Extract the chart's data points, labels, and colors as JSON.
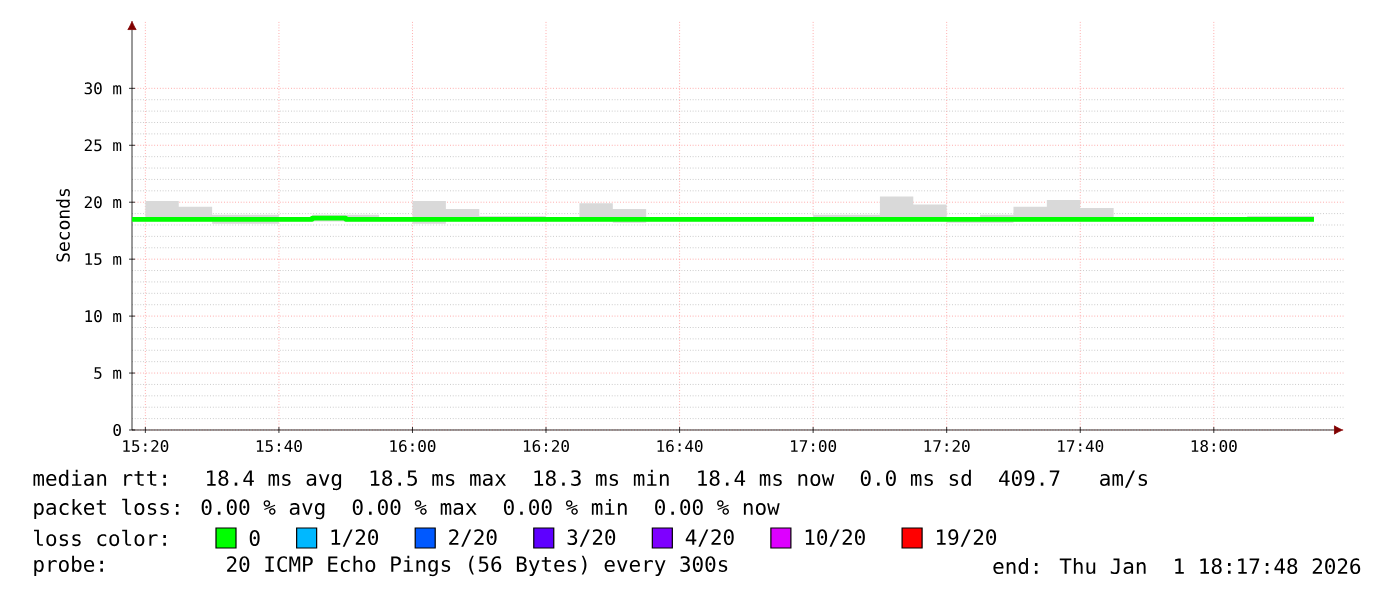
{
  "chart_data": {
    "type": "step",
    "ylabel": "Seconds",
    "x": [
      15.3,
      15.333333,
      15.416667,
      15.5,
      15.583333,
      15.666667,
      15.75,
      15.833333,
      15.916667,
      16,
      16.083333,
      16.166667,
      16.25,
      16.333333,
      16.416667,
      16.5,
      16.583333,
      16.666667,
      16.75,
      16.833333,
      16.916667,
      17,
      17.083333,
      17.166667,
      17.25,
      17.333333,
      17.416667,
      17.5,
      17.583333,
      17.666667,
      17.75,
      17.833333,
      17.916667,
      18,
      18.083333,
      18.166667,
      18.25
    ],
    "xlim": [
      15.3,
      18.325
    ],
    "xticks": [
      {
        "value": 15.333333,
        "label": "15:20"
      },
      {
        "value": 15.666667,
        "label": "15:40"
      },
      {
        "value": 16,
        "label": "16:00"
      },
      {
        "value": 16.333333,
        "label": "16:20"
      },
      {
        "value": 16.666667,
        "label": "16:40"
      },
      {
        "value": 17,
        "label": "17:00"
      },
      {
        "value": 17.333333,
        "label": "17:20"
      },
      {
        "value": 17.666667,
        "label": "17:40"
      },
      {
        "value": 18,
        "label": "18:00"
      }
    ],
    "ylim": [
      0,
      36
    ],
    "yticks": [
      0,
      {
        "value": 5,
        "label": "5 m"
      },
      {
        "value": 10,
        "label": "10 m"
      },
      {
        "value": 15,
        "label": "15 m"
      },
      {
        "value": 20,
        "label": "20 m"
      },
      {
        "value": 25,
        "label": "25 m"
      },
      {
        "value": 30,
        "label": "30 m"
      }
    ],
    "grid": true,
    "legend": "bottom",
    "legend_title": "loss color:",
    "series": [
      {
        "name": "0",
        "color": "#00ff00",
        "values": [
          18.5,
          18.5,
          18.5,
          18.5,
          18.5,
          18.5,
          18.6,
          18.5,
          18.5,
          18.5,
          18.5,
          18.5,
          18.5,
          18.5,
          18.5,
          18.5,
          18.5,
          18.5,
          18.5,
          18.5,
          18.5,
          18.5,
          18.5,
          18.5,
          18.5,
          18.5,
          18.5,
          18.5,
          18.5,
          18.5,
          18.5,
          18.5,
          18.5,
          18.5,
          18.5,
          18.5,
          18.5
        ],
        "lower": [
          18.3,
          18.3,
          18.3,
          18.1,
          18.1,
          18.3,
          18.3,
          18.3,
          18.3,
          18.1,
          18.3,
          18.3,
          18.3,
          18.3,
          18.3,
          18.2,
          18.3,
          18.3,
          18.3,
          18.3,
          18.3,
          18.3,
          18.3,
          18.3,
          18.3,
          18.2,
          18.2,
          18.3,
          18.3,
          18.3,
          18.3,
          18.3,
          18.3,
          18.3,
          18.3,
          18.3,
          18.3
        ],
        "upper": [
          18.7,
          20.1,
          19.6,
          18.9,
          18.9,
          18.7,
          18.9,
          18.9,
          18.7,
          20.1,
          19.4,
          18.8,
          18.8,
          18.7,
          19.9,
          19.4,
          18.7,
          18.7,
          18.7,
          18.6,
          18.6,
          18.9,
          18.9,
          20.5,
          19.8,
          18.7,
          18.9,
          19.6,
          20.2,
          19.5,
          18.7,
          18.6,
          18.7,
          18.6,
          18.8,
          18.8,
          18.8
        ]
      },
      {
        "name": "1/20",
        "color": "#00b8ff",
        "values": [
          null,
          null,
          null,
          null,
          null,
          null,
          null,
          null,
          null,
          null,
          null,
          null,
          null,
          null,
          null,
          null,
          null,
          null,
          null,
          null,
          null,
          null,
          null,
          null,
          null,
          null,
          null,
          null,
          null,
          null,
          null,
          null,
          null,
          null,
          null,
          null,
          null
        ]
      },
      {
        "name": "2/20",
        "color": "#0059ff",
        "values": [
          null,
          null,
          null,
          null,
          null,
          null,
          null,
          null,
          null,
          null,
          null,
          null,
          null,
          null,
          null,
          null,
          null,
          null,
          null,
          null,
          null,
          null,
          null,
          null,
          null,
          null,
          null,
          null,
          null,
          null,
          null,
          null,
          null,
          null,
          null,
          null,
          null
        ]
      },
      {
        "name": "3/20",
        "color": "#5e00ff",
        "values": [
          null,
          null,
          null,
          null,
          null,
          null,
          null,
          null,
          null,
          null,
          null,
          null,
          null,
          null,
          null,
          null,
          null,
          null,
          null,
          null,
          null,
          null,
          null,
          null,
          null,
          null,
          null,
          null,
          null,
          null,
          null,
          null,
          null,
          null,
          null,
          null,
          null
        ]
      },
      {
        "name": "4/20",
        "color": "#7e00ff",
        "values": [
          null,
          null,
          null,
          null,
          null,
          null,
          null,
          null,
          null,
          null,
          null,
          null,
          null,
          null,
          null,
          null,
          null,
          null,
          null,
          null,
          null,
          null,
          null,
          null,
          null,
          null,
          null,
          null,
          null,
          null,
          null,
          null,
          null,
          null,
          null,
          null,
          null
        ]
      },
      {
        "name": "10/20",
        "color": "#dd00ff",
        "values": [
          null,
          null,
          null,
          null,
          null,
          null,
          null,
          null,
          null,
          null,
          null,
          null,
          null,
          null,
          null,
          null,
          null,
          null,
          null,
          null,
          null,
          null,
          null,
          null,
          null,
          null,
          null,
          null,
          null,
          null,
          null,
          null,
          null,
          null,
          null,
          null,
          null
        ]
      },
      {
        "name": "19/20",
        "color": "#ff0000",
        "values": [
          null,
          null,
          null,
          null,
          null,
          null,
          null,
          null,
          null,
          null,
          null,
          null,
          null,
          null,
          null,
          null,
          null,
          null,
          null,
          null,
          null,
          null,
          null,
          null,
          null,
          null,
          null,
          null,
          null,
          null,
          null,
          null,
          null,
          null,
          null,
          null,
          null
        ]
      }
    ],
    "annotations": [
      "median rtt:  18.4 ms avg  18.5 ms max  18.3 ms min  18.4 ms now  0.0 ms sd  409.7   am/s",
      "packet loss: 0.00 % avg  0.00 % max  0.00 % min  0.00 % now",
      "probe:       20 ICMP Echo Pings (56 Bytes) every 300s",
      "end: Thu Jan  1 18:17:48 2026"
    ]
  }
}
